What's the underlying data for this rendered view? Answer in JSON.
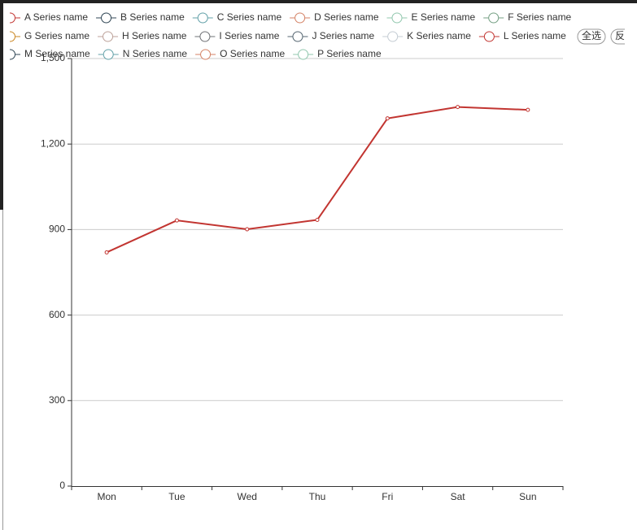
{
  "chart_data": {
    "type": "line",
    "categories": [
      "Mon",
      "Tue",
      "Wed",
      "Thu",
      "Fri",
      "Sat",
      "Sun"
    ],
    "series": [
      {
        "name": "A Series name",
        "color": "#c23531",
        "values": [
          820,
          932,
          901,
          934,
          1290,
          1330,
          1320
        ]
      },
      {
        "name": "B Series name",
        "color": "#2f4554"
      },
      {
        "name": "C Series name",
        "color": "#61a0a8"
      },
      {
        "name": "D Series name",
        "color": "#d48265"
      },
      {
        "name": "E Series name",
        "color": "#91c7ae"
      },
      {
        "name": "F Series name",
        "color": "#749f83"
      },
      {
        "name": "G Series name",
        "color": "#ca8622"
      },
      {
        "name": "H Series name",
        "color": "#bda29a"
      },
      {
        "name": "I Series name",
        "color": "#6e7074"
      },
      {
        "name": "J Series name",
        "color": "#546570"
      },
      {
        "name": "K Series name",
        "color": "#c4ccd3"
      },
      {
        "name": "L Series name",
        "color": "#c23531"
      },
      {
        "name": "M Series name",
        "color": "#2f4554"
      },
      {
        "name": "N Series name",
        "color": "#61a0a8"
      },
      {
        "name": "O Series name",
        "color": "#d48265"
      },
      {
        "name": "P Series name",
        "color": "#91c7ae"
      }
    ],
    "ylim": [
      0,
      1500
    ],
    "yticks": [
      0,
      300,
      600,
      900,
      {
        "value": 1200,
        "label": "1,200"
      },
      {
        "value": 1500,
        "label": "1,500"
      }
    ],
    "grid": true,
    "buttons": [
      "全选",
      "反选"
    ]
  }
}
